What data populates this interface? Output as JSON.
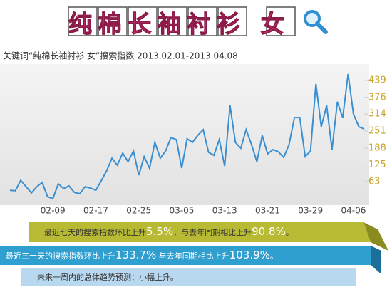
{
  "title": "纯棉长袖衬衫 女",
  "chart_data": {
    "type": "line",
    "subtitle": "关键词“纯棉长袖衬衫 女”搜索指数 2013.02.01-2013.04.08",
    "categories": [
      null,
      null,
      null,
      null,
      null,
      null,
      null,
      null,
      "02-09",
      null,
      null,
      null,
      null,
      null,
      null,
      null,
      "02-17",
      null,
      null,
      null,
      null,
      null,
      null,
      null,
      "02-25",
      null,
      null,
      null,
      null,
      null,
      null,
      null,
      "03-05",
      null,
      null,
      null,
      null,
      null,
      null,
      null,
      "03-13",
      null,
      null,
      null,
      null,
      null,
      null,
      null,
      "03-21",
      null,
      null,
      null,
      null,
      null,
      null,
      null,
      "03-29",
      null,
      null,
      null,
      null,
      null,
      null,
      null,
      "04-06",
      null,
      null
    ],
    "series": [
      {
        "color": "#3a8fd0",
        "values": [
          31,
          29,
          68,
          44,
          21,
          44,
          60,
          7,
          0,
          55,
          37,
          47,
          23,
          18,
          44,
          39,
          31,
          66,
          103,
          150,
          124,
          169,
          137,
          177,
          87,
          156,
          113,
          209,
          150,
          177,
          227,
          219,
          113,
          222,
          209,
          235,
          256,
          172,
          161,
          219,
          121,
          346,
          209,
          187,
          256,
          201,
          137,
          235,
          166,
          182,
          174,
          153,
          201,
          301,
          301,
          156,
          177,
          426,
          267,
          346,
          182,
          360,
          301,
          463,
          314,
          267,
          259
        ]
      }
    ],
    "ylim": [
      0,
      480
    ],
    "yticks": [
      63,
      125,
      188,
      251,
      314,
      376,
      439
    ]
  },
  "banners": [
    {
      "parts": [
        "最近七天的搜索指数环比上升",
        "5.5%",
        "，与去年同期相比上升",
        "90.8%",
        "。"
      ]
    },
    {
      "parts": [
        "最近三十天的搜索指数环比上升",
        "133.7%",
        " 与去年同期相比上升",
        "103.9%",
        "。"
      ]
    },
    {
      "parts": [
        "未来一周内的总体趋势预测：小幅上升。"
      ]
    }
  ]
}
